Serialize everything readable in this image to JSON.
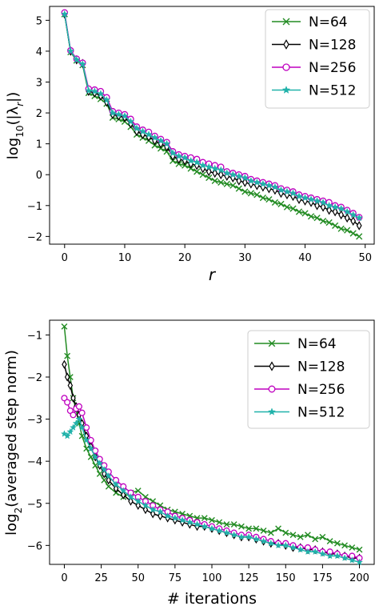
{
  "chart_data": [
    {
      "type": "line",
      "xlabel": "r",
      "ylabel_base": "log",
      "ylabel_sub": "10",
      "ylabel_rest": "(|λ",
      "ylabel_sub2": "r",
      "ylabel_end": "|)",
      "xlim": [
        -2.5,
        51.5
      ],
      "ylim": [
        -2.25,
        5.45
      ],
      "xticks": [
        "0",
        "10",
        "20",
        "30",
        "40",
        "50"
      ],
      "xtick_values": [
        0,
        10,
        20,
        30,
        40,
        50
      ],
      "yticks": [
        "−2",
        "−1",
        "0",
        "1",
        "2",
        "3",
        "4",
        "5"
      ],
      "ytick_values": [
        -2,
        -1,
        0,
        1,
        2,
        3,
        4,
        5
      ],
      "legend_position": "top-right",
      "grid": false,
      "series": [
        {
          "name": "N=64",
          "color": "#228b22",
          "marker": "x",
          "x": [
            0,
            1,
            2,
            3,
            4,
            5,
            6,
            7,
            8,
            9,
            10,
            11,
            12,
            13,
            14,
            15,
            16,
            17,
            18,
            19,
            20,
            21,
            22,
            23,
            24,
            25,
            26,
            27,
            28,
            29,
            30,
            31,
            32,
            33,
            34,
            35,
            36,
            37,
            38,
            39,
            40,
            41,
            42,
            43,
            44,
            45,
            46,
            47,
            48,
            49
          ],
          "y": [
            5.2,
            3.97,
            3.7,
            3.55,
            2.65,
            2.55,
            2.45,
            2.3,
            1.85,
            1.8,
            1.72,
            1.55,
            1.3,
            1.2,
            1.1,
            0.95,
            0.85,
            0.75,
            0.45,
            0.35,
            0.3,
            0.2,
            0.1,
            0.0,
            -0.1,
            -0.2,
            -0.25,
            -0.3,
            -0.35,
            -0.45,
            -0.55,
            -0.6,
            -0.65,
            -0.75,
            -0.8,
            -0.9,
            -0.95,
            -1.05,
            -1.1,
            -1.2,
            -1.25,
            -1.35,
            -1.4,
            -1.5,
            -1.55,
            -1.65,
            -1.75,
            -1.8,
            -1.9,
            -2.0
          ]
        },
        {
          "name": "N=128",
          "color": "#000000",
          "marker": "d",
          "x": [
            0,
            1,
            2,
            3,
            4,
            5,
            6,
            7,
            8,
            9,
            10,
            11,
            12,
            13,
            14,
            15,
            16,
            17,
            18,
            19,
            20,
            21,
            22,
            23,
            24,
            25,
            26,
            27,
            28,
            29,
            30,
            31,
            32,
            33,
            34,
            35,
            36,
            37,
            38,
            39,
            40,
            41,
            42,
            43,
            44,
            45,
            46,
            47,
            48,
            49
          ],
          "y": [
            5.2,
            4.0,
            3.72,
            3.6,
            2.7,
            2.65,
            2.55,
            2.35,
            1.95,
            1.9,
            1.85,
            1.65,
            1.4,
            1.3,
            1.22,
            1.1,
            1.0,
            0.9,
            0.6,
            0.5,
            0.45,
            0.35,
            0.3,
            0.2,
            0.1,
            0.05,
            0.0,
            -0.05,
            -0.1,
            -0.2,
            -0.25,
            -0.3,
            -0.35,
            -0.4,
            -0.45,
            -0.5,
            -0.6,
            -0.65,
            -0.7,
            -0.8,
            -0.85,
            -0.9,
            -1.0,
            -1.05,
            -1.15,
            -1.2,
            -1.3,
            -1.4,
            -1.5,
            -1.65
          ]
        },
        {
          "name": "N=256",
          "color": "#bf00bf",
          "marker": "o",
          "x": [
            0,
            1,
            2,
            3,
            4,
            5,
            6,
            7,
            8,
            9,
            10,
            11,
            12,
            13,
            14,
            15,
            16,
            17,
            18,
            19,
            20,
            21,
            22,
            23,
            24,
            25,
            26,
            27,
            28,
            29,
            30,
            31,
            32,
            33,
            34,
            35,
            36,
            37,
            38,
            39,
            40,
            41,
            42,
            43,
            44,
            45,
            46,
            47,
            48,
            49
          ],
          "y": [
            5.25,
            4.02,
            3.75,
            3.62,
            2.78,
            2.75,
            2.7,
            2.5,
            2.05,
            2.0,
            1.95,
            1.8,
            1.55,
            1.45,
            1.38,
            1.25,
            1.15,
            1.05,
            0.75,
            0.65,
            0.6,
            0.55,
            0.5,
            0.4,
            0.35,
            0.3,
            0.25,
            0.1,
            0.05,
            0.0,
            -0.05,
            -0.15,
            -0.2,
            -0.25,
            -0.3,
            -0.35,
            -0.45,
            -0.5,
            -0.55,
            -0.65,
            -0.7,
            -0.75,
            -0.8,
            -0.85,
            -0.9,
            -1.0,
            -1.05,
            -1.15,
            -1.25,
            -1.38
          ]
        },
        {
          "name": "N=512",
          "color": "#20b2aa",
          "marker": "*",
          "x": [
            0,
            1,
            2,
            3,
            4,
            5,
            6,
            7,
            8,
            9,
            10,
            11,
            12,
            13,
            14,
            15,
            16,
            17,
            18,
            19,
            20,
            21,
            22,
            23,
            24,
            25,
            26,
            27,
            28,
            29,
            30,
            31,
            32,
            33,
            34,
            35,
            36,
            37,
            38,
            39,
            40,
            41,
            42,
            43,
            44,
            45,
            46,
            47,
            48,
            49
          ],
          "y": [
            5.2,
            4.0,
            3.72,
            3.58,
            2.72,
            2.7,
            2.62,
            2.42,
            2.0,
            1.95,
            1.9,
            1.72,
            1.5,
            1.4,
            1.3,
            1.2,
            1.1,
            1.0,
            0.7,
            0.6,
            0.55,
            0.45,
            0.4,
            0.3,
            0.25,
            0.2,
            0.15,
            0.05,
            0.0,
            -0.05,
            -0.1,
            -0.2,
            -0.25,
            -0.3,
            -0.35,
            -0.4,
            -0.5,
            -0.55,
            -0.6,
            -0.7,
            -0.75,
            -0.8,
            -0.85,
            -0.9,
            -1.0,
            -1.05,
            -1.1,
            -1.2,
            -1.3,
            -1.4
          ]
        }
      ]
    },
    {
      "type": "line",
      "xlabel": "# iterations",
      "ylabel_base": "log",
      "ylabel_sub": "2",
      "ylabel_rest": "(averaged step norm)",
      "xlim": [
        -10,
        210
      ],
      "ylim": [
        -6.45,
        -0.65
      ],
      "xticks": [
        "0",
        "25",
        "50",
        "75",
        "100",
        "125",
        "150",
        "175",
        "200"
      ],
      "xtick_values": [
        0,
        25,
        50,
        75,
        100,
        125,
        150,
        175,
        200
      ],
      "yticks": [
        "−6",
        "−5",
        "−4",
        "−3",
        "−2",
        "−1"
      ],
      "ytick_values": [
        -6,
        -5,
        -4,
        -3,
        -2,
        -1
      ],
      "legend_position": "top-right",
      "grid": false,
      "series": [
        {
          "name": "N=64",
          "color": "#228b22",
          "marker": "x",
          "x": [
            0,
            2,
            4,
            6,
            8,
            10,
            12,
            15,
            18,
            21,
            24,
            27,
            30,
            35,
            40,
            45,
            50,
            55,
            60,
            65,
            70,
            75,
            80,
            85,
            90,
            95,
            100,
            105,
            110,
            115,
            120,
            125,
            130,
            135,
            140,
            145,
            150,
            155,
            160,
            165,
            170,
            175,
            180,
            185,
            190,
            195,
            200
          ],
          "y": [
            -0.8,
            -1.5,
            -2.0,
            -2.5,
            -2.8,
            -3.1,
            -3.4,
            -3.7,
            -3.9,
            -4.1,
            -4.3,
            -4.45,
            -4.6,
            -4.75,
            -4.85,
            -4.75,
            -4.7,
            -4.85,
            -4.95,
            -5.05,
            -5.15,
            -5.2,
            -5.25,
            -5.3,
            -5.35,
            -5.35,
            -5.4,
            -5.45,
            -5.5,
            -5.5,
            -5.55,
            -5.6,
            -5.6,
            -5.65,
            -5.7,
            -5.6,
            -5.7,
            -5.75,
            -5.8,
            -5.75,
            -5.85,
            -5.8,
            -5.9,
            -5.95,
            -6.0,
            -6.05,
            -6.1
          ]
        },
        {
          "name": "N=128",
          "color": "#000000",
          "marker": "d",
          "x": [
            0,
            2,
            4,
            6,
            8,
            10,
            12,
            15,
            18,
            21,
            24,
            27,
            30,
            35,
            40,
            45,
            50,
            55,
            60,
            65,
            70,
            75,
            80,
            85,
            90,
            95,
            100,
            105,
            110,
            115,
            120,
            125,
            130,
            135,
            140,
            145,
            150,
            155,
            160,
            165,
            170,
            175,
            180,
            185,
            190,
            195,
            200
          ],
          "y": [
            -1.7,
            -2.0,
            -2.2,
            -2.5,
            -2.7,
            -2.9,
            -3.1,
            -3.4,
            -3.65,
            -3.9,
            -4.1,
            -4.3,
            -4.45,
            -4.65,
            -4.8,
            -4.95,
            -5.05,
            -5.15,
            -5.25,
            -5.3,
            -5.35,
            -5.4,
            -5.45,
            -5.5,
            -5.55,
            -5.55,
            -5.6,
            -5.65,
            -5.7,
            -5.75,
            -5.8,
            -5.8,
            -5.85,
            -5.9,
            -5.95,
            -5.95,
            -6.0,
            -6.05,
            -6.05,
            -6.1,
            -6.1,
            -6.15,
            -6.2,
            -6.2,
            -6.25,
            -6.3,
            -6.3
          ]
        },
        {
          "name": "N=256",
          "color": "#bf00bf",
          "marker": "o",
          "x": [
            0,
            2,
            4,
            6,
            8,
            10,
            12,
            15,
            18,
            21,
            24,
            27,
            30,
            35,
            40,
            45,
            50,
            55,
            60,
            65,
            70,
            75,
            80,
            85,
            90,
            95,
            100,
            105,
            110,
            115,
            120,
            125,
            130,
            135,
            140,
            145,
            150,
            155,
            160,
            165,
            170,
            175,
            180,
            185,
            190,
            195,
            200
          ],
          "y": [
            -2.5,
            -2.6,
            -2.8,
            -2.9,
            -2.75,
            -2.7,
            -2.85,
            -3.2,
            -3.5,
            -3.75,
            -3.95,
            -4.1,
            -4.25,
            -4.45,
            -4.6,
            -4.75,
            -4.85,
            -4.95,
            -5.05,
            -5.15,
            -5.2,
            -5.3,
            -5.35,
            -5.4,
            -5.45,
            -5.5,
            -5.55,
            -5.6,
            -5.65,
            -5.7,
            -5.75,
            -5.75,
            -5.8,
            -5.85,
            -5.9,
            -5.95,
            -5.95,
            -6.0,
            -6.05,
            -6.05,
            -6.1,
            -6.15,
            -6.15,
            -6.2,
            -6.25,
            -6.25,
            -6.3
          ]
        },
        {
          "name": "N=512",
          "color": "#20b2aa",
          "marker": "*",
          "x": [
            0,
            2,
            4,
            6,
            8,
            10,
            12,
            15,
            18,
            21,
            24,
            27,
            30,
            35,
            40,
            45,
            50,
            55,
            60,
            65,
            70,
            75,
            80,
            85,
            90,
            95,
            100,
            105,
            110,
            115,
            120,
            125,
            130,
            135,
            140,
            145,
            150,
            155,
            160,
            165,
            170,
            175,
            180,
            185,
            190,
            195,
            200
          ],
          "y": [
            -3.35,
            -3.4,
            -3.3,
            -3.2,
            -3.1,
            -3.0,
            -3.2,
            -3.5,
            -3.7,
            -3.9,
            -4.05,
            -4.2,
            -4.35,
            -4.55,
            -4.7,
            -4.85,
            -4.95,
            -5.05,
            -5.15,
            -5.2,
            -5.3,
            -5.35,
            -5.4,
            -5.45,
            -5.5,
            -5.55,
            -5.6,
            -5.65,
            -5.7,
            -5.75,
            -5.8,
            -5.8,
            -5.85,
            -5.9,
            -5.95,
            -6.0,
            -6.0,
            -6.05,
            -6.1,
            -6.15,
            -6.15,
            -6.2,
            -6.25,
            -6.25,
            -6.3,
            -6.35,
            -6.4
          ]
        }
      ]
    }
  ]
}
